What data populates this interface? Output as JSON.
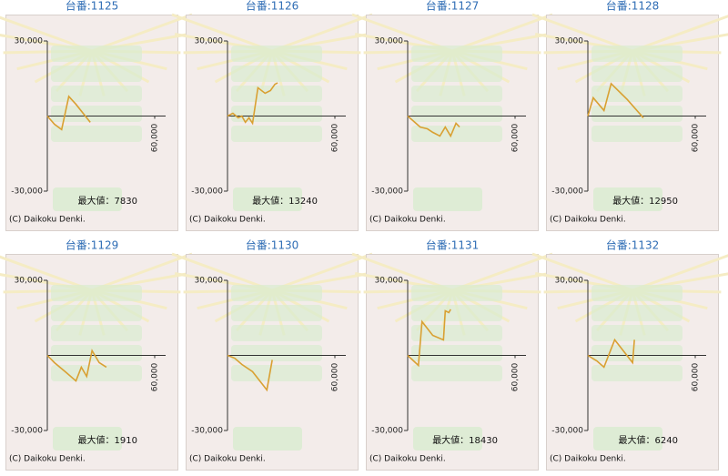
{
  "chart_data": [
    {
      "type": "line",
      "title": "台番:1125",
      "annotation": "最大値：7830",
      "copyright": "(C) Daikoku Denki.",
      "color": "#d9a032",
      "x": [
        0,
        4000,
        8000,
        12000,
        16000,
        24000
      ],
      "values": [
        0,
        -3300,
        -5400,
        7830,
        4700,
        -2500
      ],
      "xlim": [
        0,
        60000
      ],
      "ylim": [
        -30000,
        30000
      ],
      "xticks": [
        {
          "value": 60000,
          "label": "60,000"
        }
      ],
      "yticks": [
        {
          "value": 30000,
          "label": "30,000"
        },
        {
          "value": -30000,
          "label": "-30,000"
        }
      ]
    },
    {
      "type": "line",
      "title": "台番:1126",
      "annotation": "最大値：13240",
      "copyright": "(C) Daikoku Denki.",
      "color": "#d9a032",
      "x": [
        0,
        3000,
        6000,
        8000,
        10000,
        12000,
        14000,
        17000,
        21000,
        24000,
        26500,
        28000
      ],
      "values": [
        0,
        1100,
        -700,
        0,
        -2500,
        -700,
        -2900,
        11300,
        9100,
        10200,
        12700,
        13240
      ],
      "xlim": [
        0,
        60000
      ],
      "ylim": [
        -30000,
        30000
      ],
      "xticks": [
        {
          "value": 60000,
          "label": "60,000"
        }
      ],
      "yticks": [
        {
          "value": 30000,
          "label": "30,000"
        },
        {
          "value": -30000,
          "label": "-30,000"
        }
      ]
    },
    {
      "type": "line",
      "title": "台番:1127",
      "copyright": "(C) Daikoku Denki.",
      "color": "#d9a032",
      "x": [
        0,
        4000,
        7000,
        11000,
        14000,
        18000,
        21000,
        24000,
        27000,
        29000
      ],
      "values": [
        0,
        -2500,
        -4400,
        -5100,
        -6500,
        -8000,
        -4400,
        -8000,
        -2900,
        -4400
      ],
      "xlim": [
        0,
        60000
      ],
      "ylim": [
        -30000,
        30000
      ],
      "xticks": [
        {
          "value": 60000,
          "label": "60,000"
        }
      ],
      "yticks": [
        {
          "value": 30000,
          "label": "30,000"
        },
        {
          "value": -30000,
          "label": "-30,000"
        }
      ]
    },
    {
      "type": "line",
      "title": "台番:1128",
      "annotation": "最大値：12950",
      "copyright": "(C) Daikoku Denki.",
      "color": "#d9a032",
      "x": [
        0,
        3000,
        9000,
        13000,
        22000,
        31000
      ],
      "values": [
        0,
        7300,
        2200,
        12950,
        6600,
        -700
      ],
      "xlim": [
        0,
        60000
      ],
      "ylim": [
        -30000,
        30000
      ],
      "xticks": [
        {
          "value": 60000,
          "label": "60,000"
        }
      ],
      "yticks": [
        {
          "value": 30000,
          "label": "30,000"
        },
        {
          "value": -30000,
          "label": "-30,000"
        }
      ]
    },
    {
      "type": "line",
      "title": "台番:1129",
      "annotation": "最大値：1910",
      "copyright": "(C) Daikoku Denki.",
      "color": "#d9a032",
      "x": [
        0,
        4000,
        10000,
        16000,
        19000,
        22000,
        25000,
        29000,
        33000
      ],
      "values": [
        0,
        -2900,
        -6500,
        -10200,
        -4700,
        -8400,
        1910,
        -2900,
        -4700
      ],
      "xlim": [
        0,
        60000
      ],
      "ylim": [
        -30000,
        30000
      ],
      "xticks": [
        {
          "value": 60000,
          "label": "60,000"
        }
      ],
      "yticks": [
        {
          "value": 30000,
          "label": "30,000"
        },
        {
          "value": -30000,
          "label": "-30,000"
        }
      ]
    },
    {
      "type": "line",
      "title": "台番:1130",
      "copyright": "(C) Daikoku Denki.",
      "color": "#d9a032",
      "x": [
        0,
        4000,
        8000,
        14000,
        22000,
        25000
      ],
      "values": [
        0,
        -1100,
        -3600,
        -6500,
        -13800,
        -1800
      ],
      "xlim": [
        0,
        60000
      ],
      "ylim": [
        -30000,
        30000
      ],
      "xticks": [
        {
          "value": 60000,
          "label": "60,000"
        }
      ],
      "yticks": [
        {
          "value": 30000,
          "label": "30,000"
        },
        {
          "value": -30000,
          "label": "-30,000"
        }
      ]
    },
    {
      "type": "line",
      "title": "台番:1131",
      "annotation": "最大値：18430",
      "copyright": "(C) Daikoku Denki.",
      "color": "#d9a032",
      "x": [
        0,
        6000,
        8000,
        14000,
        20000,
        21000,
        23000,
        24000
      ],
      "values": [
        0,
        -4000,
        13500,
        8000,
        6200,
        17800,
        17100,
        18430
      ],
      "xlim": [
        0,
        60000
      ],
      "ylim": [
        -30000,
        30000
      ],
      "xticks": [
        {
          "value": 60000,
          "label": "60,000"
        }
      ],
      "yticks": [
        {
          "value": 30000,
          "label": "30,000"
        },
        {
          "value": -30000,
          "label": "-30,000"
        }
      ]
    },
    {
      "type": "line",
      "title": "台番:1132",
      "annotation": "最大値：6240",
      "copyright": "(C) Daikoku Denki.",
      "color": "#d9a032",
      "x": [
        0,
        5000,
        9000,
        15000,
        25000,
        26000
      ],
      "values": [
        0,
        -2200,
        -4700,
        6240,
        -2900,
        6240
      ],
      "xlim": [
        0,
        60000
      ],
      "ylim": [
        -30000,
        30000
      ],
      "xticks": [
        {
          "value": 60000,
          "label": "60,000"
        }
      ],
      "yticks": [
        {
          "value": 30000,
          "label": "30,000"
        },
        {
          "value": -30000,
          "label": "-30,000"
        }
      ]
    }
  ]
}
